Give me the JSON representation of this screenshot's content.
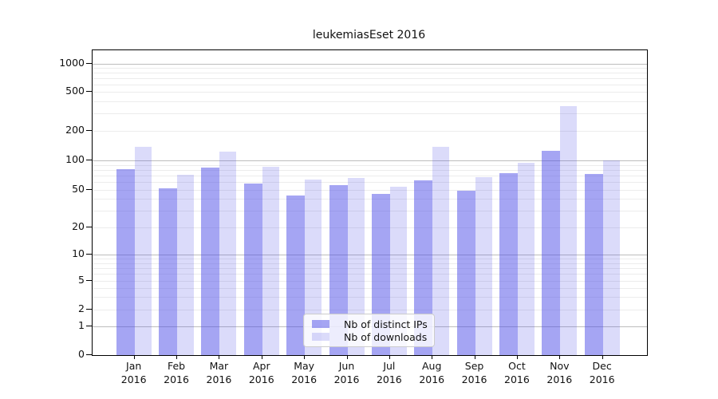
{
  "title": "leukemiasEset 2016",
  "legend": {
    "items": [
      {
        "label": "Nb of distinct IPs",
        "color": "rgba(76,76,232,0.5)"
      },
      {
        "label": "Nb of downloads",
        "color": "rgba(76,76,232,0.2)"
      }
    ]
  },
  "chart_data": {
    "type": "bar",
    "title": "leukemiasEset 2016",
    "categories": [
      "Jan 2016",
      "Feb 2016",
      "Mar 2016",
      "Apr 2016",
      "May 2016",
      "Jun 2016",
      "Jul 2016",
      "Aug 2016",
      "Sep 2016",
      "Oct 2016",
      "Nov 2016",
      "Dec 2016"
    ],
    "series": [
      {
        "name": "Nb of distinct IPs",
        "values": [
          81,
          52,
          85,
          58,
          44,
          56,
          45,
          63,
          49,
          74,
          126,
          73
        ]
      },
      {
        "name": "Nb of downloads",
        "values": [
          138,
          72,
          122,
          86,
          64,
          66,
          54,
          138,
          68,
          95,
          360,
          100
        ]
      }
    ],
    "y_scale": "log-like (0,1 then logarithmic)",
    "y_ticks": [
      0,
      1,
      2,
      5,
      10,
      20,
      50,
      100,
      200,
      500,
      1000
    ],
    "ylim": [
      0,
      1000
    ],
    "xlabel": "",
    "ylabel": "",
    "grid": "horizontal major (powers of 10, gray) + minor (light gray)",
    "legend_position": "lower center inside plot",
    "bar_colors": {
      "nb_of_distinct_ips": "rgba(76,76,232,0.5)",
      "nb_of_downloads": "rgba(76,76,232,0.2)"
    }
  }
}
